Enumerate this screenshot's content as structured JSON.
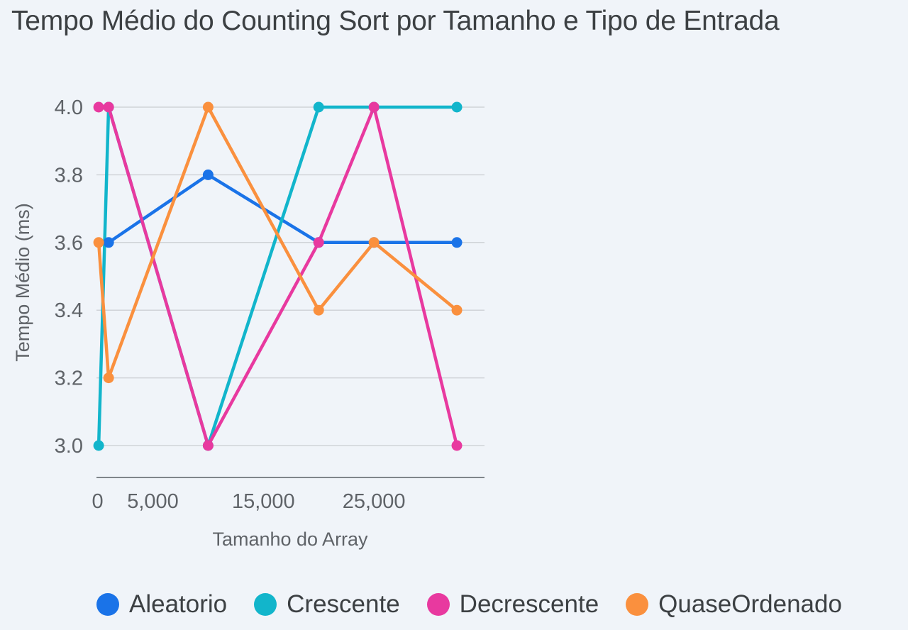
{
  "chart_data": {
    "type": "line",
    "title": "Tempo Médio do Counting Sort por Tamanho e Tipo de Entrada",
    "xlabel": "Tamanho do Array",
    "ylabel": "Tempo Médio (ms)",
    "xlim": [
      -100,
      35000
    ],
    "ylim": [
      2.91,
      4.0
    ],
    "x_ticks": [
      0,
      5000,
      15000,
      25000
    ],
    "x_tick_labels": [
      "0",
      "5,000",
      "15,000",
      "25,000"
    ],
    "y_ticks": [
      3.0,
      3.2,
      3.4,
      3.6,
      3.8,
      4.0
    ],
    "y_tick_labels": [
      "3.0",
      "3.2",
      "3.4",
      "3.6",
      "3.8",
      "4.0"
    ],
    "grid": true,
    "legend_position": "bottom",
    "x": [
      100,
      1000,
      10000,
      20000,
      25000,
      32500
    ],
    "series": [
      {
        "name": "Aleatorio",
        "color": "#1a73e8",
        "values": [
          null,
          3.6,
          3.8,
          3.6,
          3.6,
          3.6
        ]
      },
      {
        "name": "Crescente",
        "color": "#12b5cb",
        "values": [
          3.0,
          4.0,
          3.0,
          4.0,
          4.0,
          4.0
        ]
      },
      {
        "name": "Decrescente",
        "color": "#e8399f",
        "values": [
          4.0,
          4.0,
          3.0,
          3.6,
          4.0,
          3.0
        ]
      },
      {
        "name": "QuaseOrdenado",
        "color": "#fa903e",
        "values": [
          3.6,
          3.2,
          4.0,
          3.4,
          3.6,
          3.4
        ]
      }
    ]
  }
}
